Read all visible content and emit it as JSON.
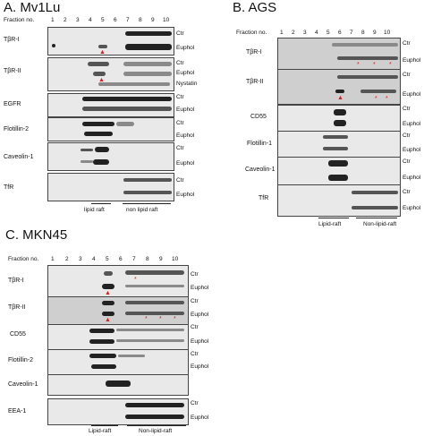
{
  "panelA": {
    "title": "A. Mv1Lu",
    "fraction_label": "Fraction no.",
    "fractions": [
      "1",
      "2",
      "3",
      "4",
      "5",
      "6",
      "7",
      "8",
      "9",
      "10"
    ],
    "rows": [
      {
        "protein": "TβR-I",
        "conditions": [
          "Ctr",
          "Euphol"
        ]
      },
      {
        "protein": "TβR-II",
        "conditions": [
          "Ctr",
          "Euphol",
          "Nystatin"
        ]
      },
      {
        "protein": "EGFR",
        "conditions": [
          "Ctr",
          "Euphol"
        ]
      },
      {
        "protein": "Flotillin-2",
        "conditions": [
          "Ctr",
          "Euphol"
        ]
      },
      {
        "protein": "Caveolin-1",
        "conditions": [
          "Ctr",
          "Euphol"
        ]
      },
      {
        "protein": "TfR",
        "conditions": [
          "Ctr",
          "Euphol"
        ]
      }
    ],
    "footer_left": "lipid raft",
    "footer_right": "non lipid raft"
  },
  "panelB": {
    "title": "B. AGS",
    "fraction_label": "Fraction no.",
    "fractions": [
      "1",
      "2",
      "3",
      "4",
      "5",
      "6",
      "7",
      "8",
      "9",
      "10"
    ],
    "rows": [
      {
        "protein": "TβR-I",
        "conditions": [
          "Ctr",
          "Euphol"
        ]
      },
      {
        "protein": "TβR-II",
        "conditions": [
          "Ctr",
          "Euphol"
        ]
      },
      {
        "protein": "CD55",
        "conditions": [
          "Ctr",
          "Euphol"
        ]
      },
      {
        "protein": "Flotillin-1",
        "conditions": [
          "Ctr",
          "Euphol"
        ]
      },
      {
        "protein": "Caveolin-1",
        "conditions": [
          "Ctr",
          "Euphol"
        ]
      },
      {
        "protein": "TfR",
        "conditions": [
          "Ctr",
          "Euphol"
        ]
      }
    ],
    "footer_left": "Lipid-raft",
    "footer_right": "Non-lipid-raft"
  },
  "panelC": {
    "title": "C. MKN45",
    "fraction_label": "Fraction no.",
    "fractions": [
      "1",
      "2",
      "3",
      "4",
      "5",
      "6",
      "7",
      "8",
      "9",
      "10"
    ],
    "rows": [
      {
        "protein": "TβR-I",
        "conditions": [
          "Ctr",
          "Euphol"
        ]
      },
      {
        "protein": "TβR-II",
        "conditions": [
          "Ctr",
          "Euphol"
        ]
      },
      {
        "protein": "CD55",
        "conditions": [
          "Ctr",
          "Euphol"
        ]
      },
      {
        "protein": "Flotillin-2",
        "conditions": [
          "Ctr",
          "Euphol"
        ]
      },
      {
        "protein": "Caveolin-1",
        "conditions": []
      },
      {
        "protein": "EEA-1",
        "conditions": [
          "Ctr",
          "Euphol"
        ]
      }
    ],
    "footer_left": "Lipid-raft",
    "footer_right": "Non-lipid-raft"
  },
  "marker_color": "#e01b1b"
}
